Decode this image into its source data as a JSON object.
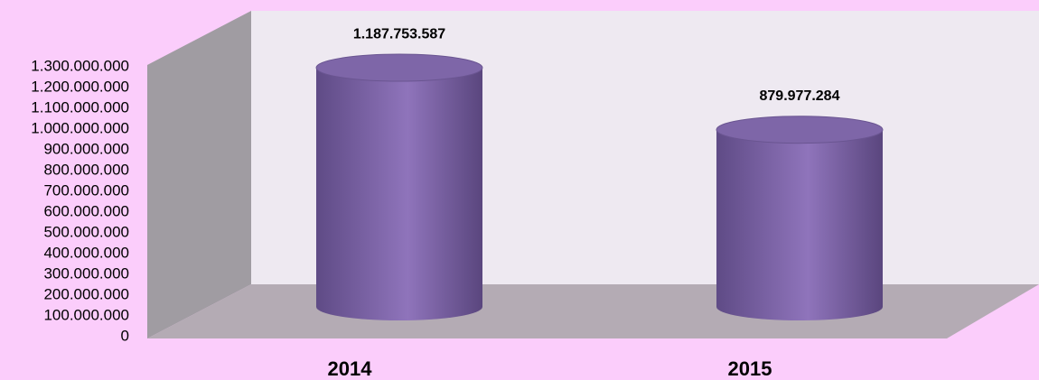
{
  "chart_data": {
    "type": "bar",
    "categories": [
      "2014",
      "2015"
    ],
    "values": [
      1187753587,
      879977284
    ],
    "value_labels": [
      "1.187.753.587",
      "879.977.284"
    ],
    "color": "#7e66a8",
    "ylim": [
      0,
      1300000000
    ],
    "yticks": [
      0,
      {
        "value": 100000000,
        "label": "100.000.000"
      },
      {
        "value": 200000000,
        "label": "200.000.000"
      },
      {
        "value": 300000000,
        "label": "300.000.000"
      },
      {
        "value": 400000000,
        "label": "400.000.000"
      },
      {
        "value": 500000000,
        "label": "500.000.000"
      },
      {
        "value": 600000000,
        "label": "600.000.000"
      },
      {
        "value": 700000000,
        "label": "700.000.000"
      },
      {
        "value": 800000000,
        "label": "800.000.000"
      },
      {
        "value": 900000000,
        "label": "900.000.000"
      },
      {
        "value": 1000000000,
        "label": "1.000.000.000"
      },
      {
        "value": 1100000000,
        "label": "1.100.000.000"
      },
      {
        "value": 1200000000,
        "label": "1.200.000.000"
      },
      {
        "value": 1300000000,
        "label": "1.300.000.000"
      }
    ]
  }
}
